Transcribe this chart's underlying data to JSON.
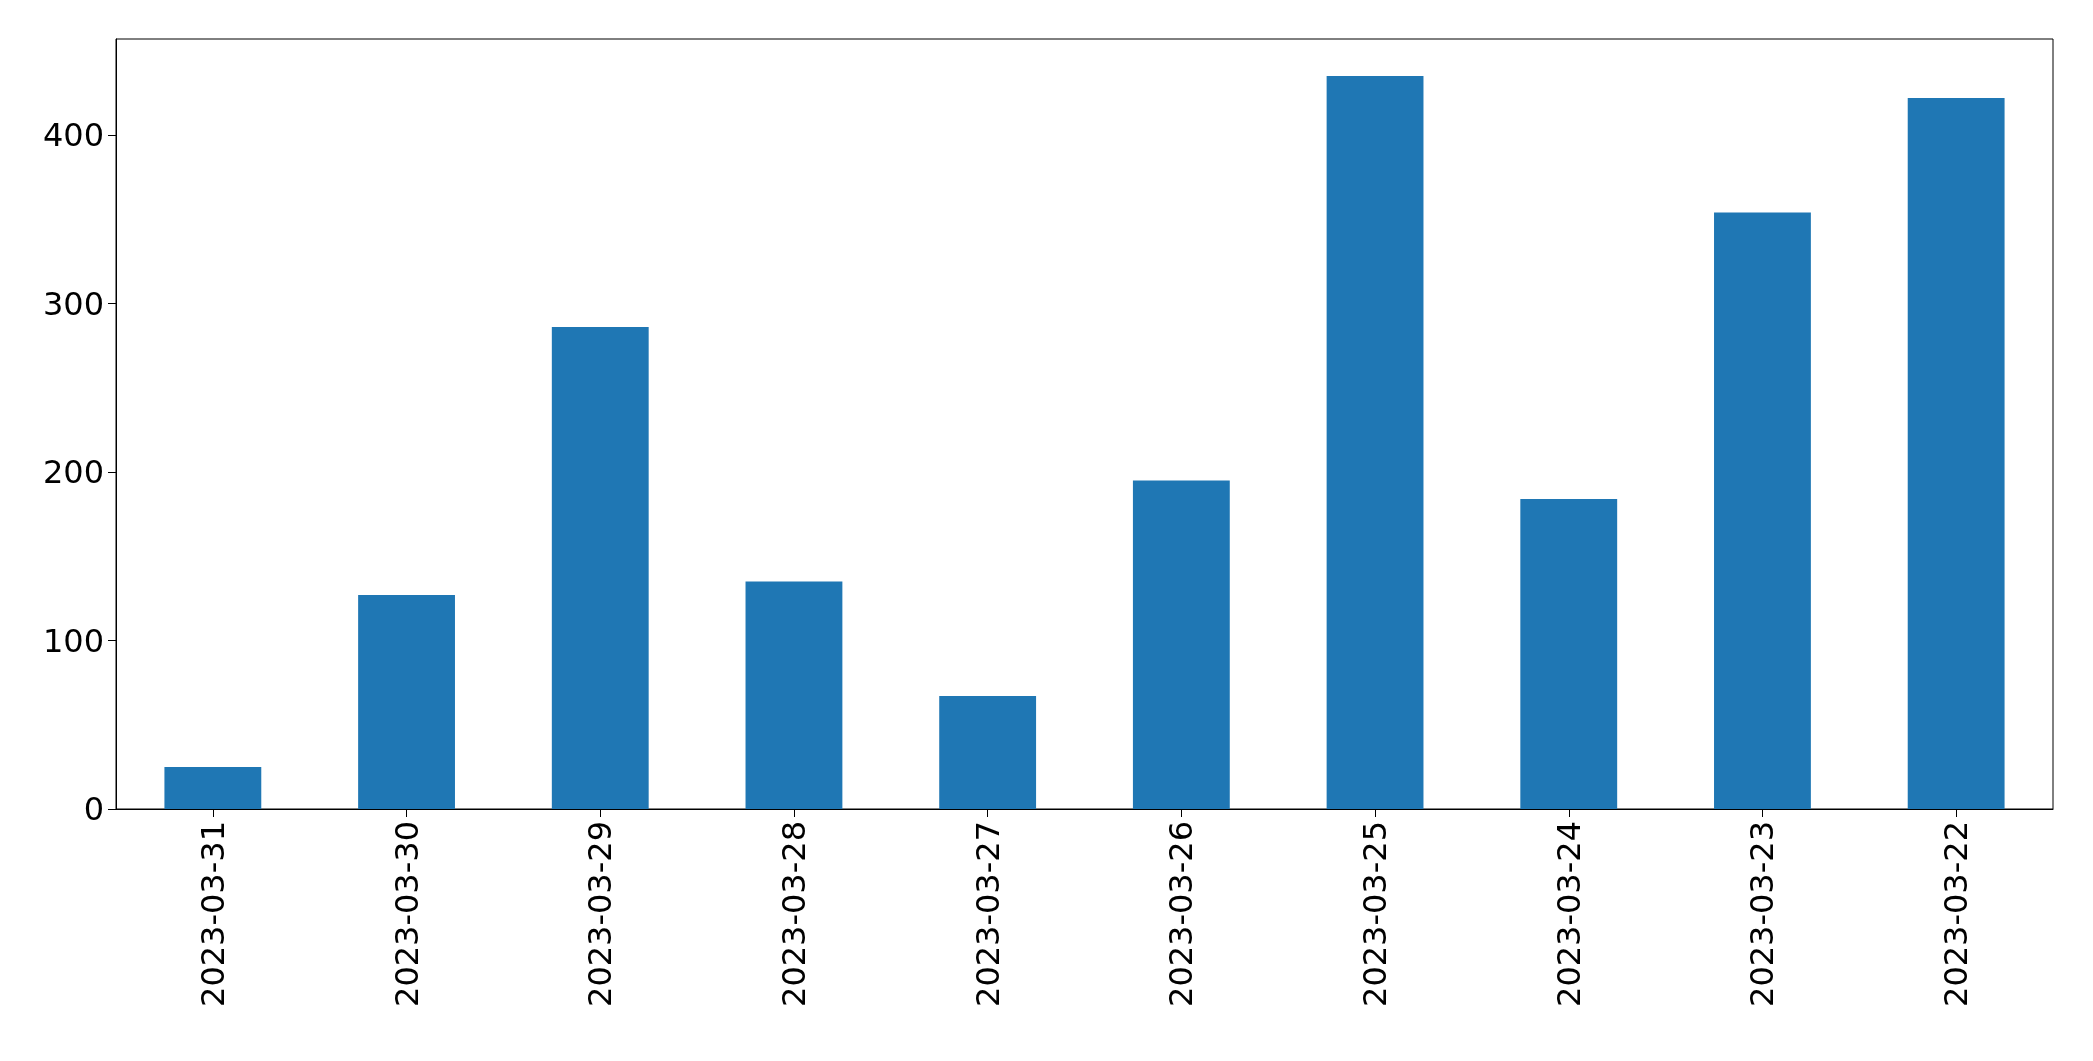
{
  "chart_data": {
    "type": "bar",
    "categories": [
      "2023-03-31",
      "2023-03-30",
      "2023-03-29",
      "2023-03-28",
      "2023-03-27",
      "2023-03-26",
      "2023-03-25",
      "2023-03-24",
      "2023-03-23",
      "2023-03-22"
    ],
    "values": [
      25,
      127,
      286,
      135,
      67,
      195,
      435,
      184,
      354,
      422
    ],
    "color": "#1f77b4",
    "ylim": [
      0,
      457
    ],
    "yticks": [
      0,
      100,
      200,
      300,
      400
    ],
    "grid": false
  }
}
